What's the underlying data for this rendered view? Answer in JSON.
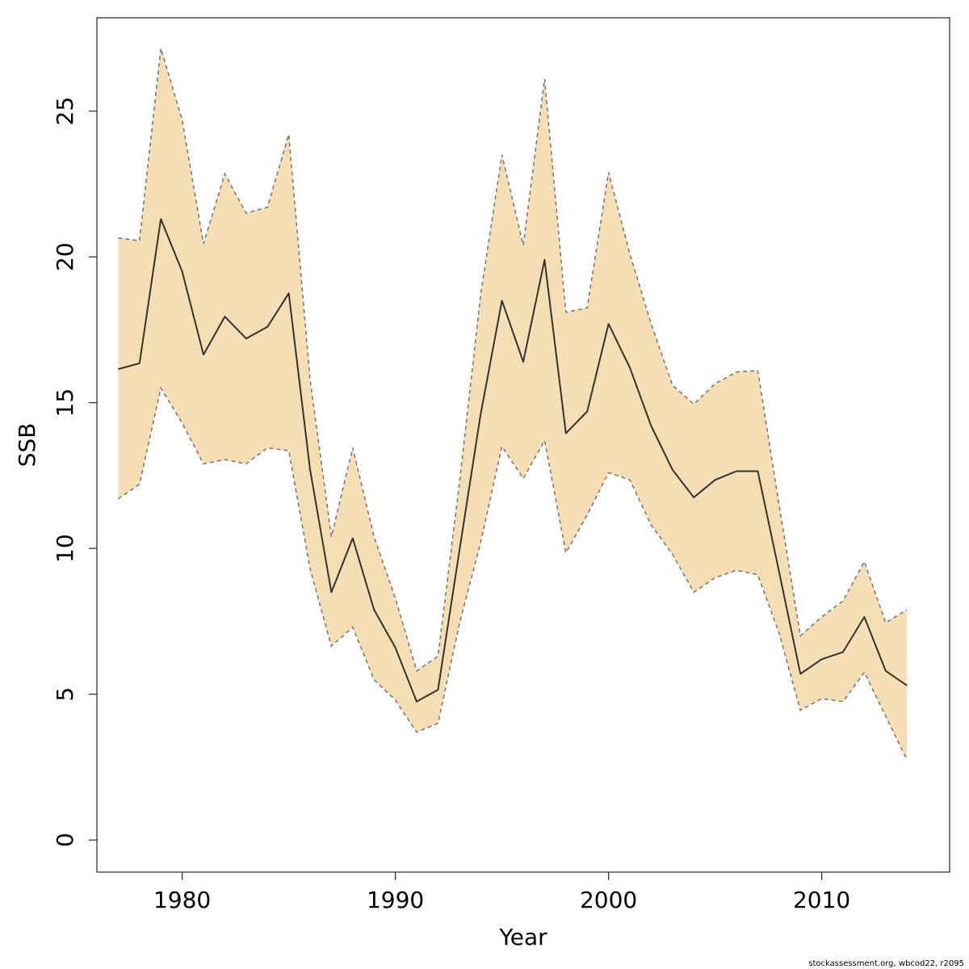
{
  "chart_data": {
    "type": "area",
    "title": "",
    "xlabel": "Year",
    "ylabel": "SSB",
    "xlim": [
      1976,
      2016
    ],
    "ylim": [
      -1.1,
      28.2
    ],
    "x_ticks": [
      1980,
      1990,
      2000,
      2010
    ],
    "y_ticks": [
      0,
      5,
      10,
      15,
      20,
      25
    ],
    "grid": false,
    "legend": "none",
    "footer": "stockassessment.org, wbcod22, r2095",
    "colors": {
      "band_fill": "#f5deb3",
      "band_edge": "#7a7a7a",
      "line": "#333333",
      "box": "#333333"
    },
    "x": [
      1977,
      1978,
      1979,
      1980,
      1981,
      1982,
      1983,
      1984,
      1985,
      1986,
      1987,
      1988,
      1989,
      1990,
      1991,
      1992,
      1993,
      1994,
      1995,
      1996,
      1997,
      1998,
      1999,
      2000,
      2001,
      2002,
      2003,
      2004,
      2005,
      2006,
      2007,
      2008,
      2009,
      2010,
      2011,
      2012,
      2013,
      2014
    ],
    "series": [
      {
        "role": "estimate",
        "values": [
          16.15,
          16.35,
          21.3,
          19.5,
          16.65,
          17.95,
          17.2,
          17.6,
          18.75,
          12.7,
          8.5,
          10.35,
          7.9,
          6.6,
          4.75,
          5.15,
          9.9,
          14.6,
          18.5,
          16.4,
          19.9,
          13.95,
          14.7,
          17.7,
          16.2,
          14.2,
          12.7,
          11.75,
          12.35,
          12.65,
          12.65,
          9.2,
          5.7,
          6.2,
          6.45,
          7.65,
          5.8,
          5.3
        ]
      },
      {
        "role": "upper",
        "values": [
          20.65,
          20.55,
          27.15,
          24.7,
          20.45,
          22.85,
          21.5,
          21.7,
          24.2,
          15.8,
          10.4,
          13.45,
          10.4,
          8.3,
          5.8,
          6.3,
          12.2,
          18.7,
          23.5,
          20.4,
          26.1,
          18.1,
          18.25,
          22.9,
          20.1,
          17.7,
          15.6,
          14.95,
          15.65,
          16.05,
          16.1,
          11.5,
          7.0,
          7.65,
          8.2,
          9.55,
          7.45,
          7.9
        ]
      },
      {
        "role": "lower",
        "values": [
          11.7,
          12.2,
          15.5,
          14.3,
          12.9,
          13.05,
          12.9,
          13.45,
          13.35,
          9.3,
          6.65,
          7.3,
          5.5,
          4.8,
          3.7,
          4.0,
          7.4,
          10.2,
          13.5,
          12.4,
          13.7,
          9.85,
          11.15,
          12.6,
          12.35,
          10.8,
          9.8,
          8.5,
          9.0,
          9.25,
          9.1,
          7.1,
          4.45,
          4.85,
          4.75,
          5.75,
          4.25,
          2.75
        ]
      }
    ]
  }
}
